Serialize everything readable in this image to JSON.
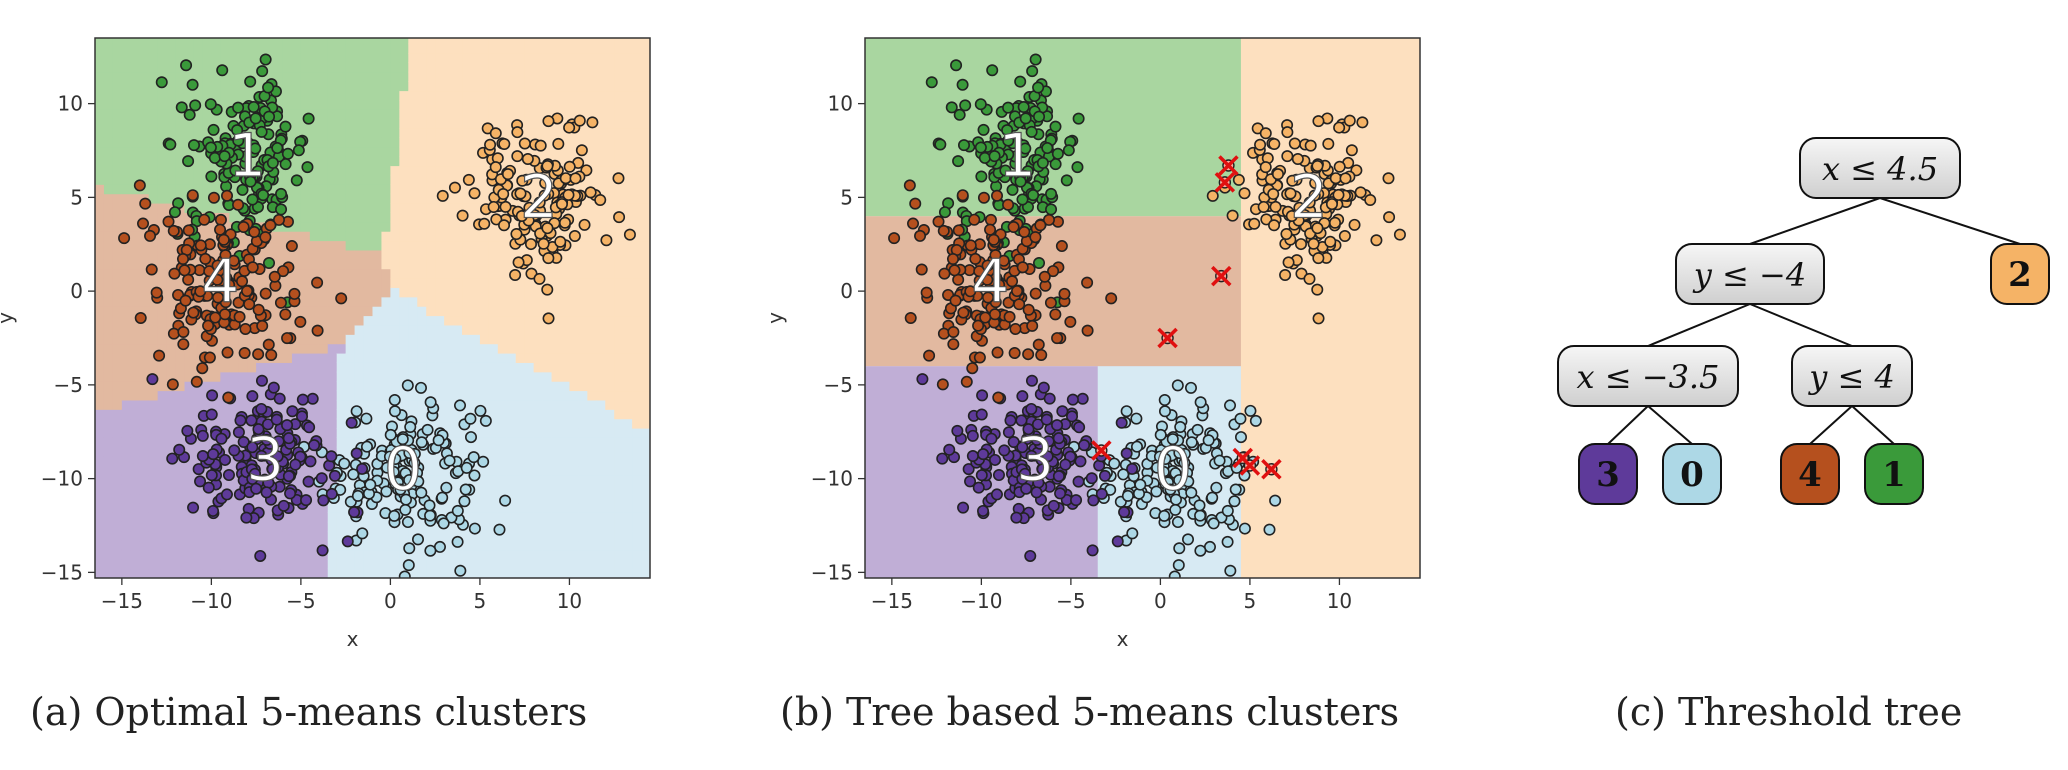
{
  "captions": {
    "a": "(a) Optimal 5-means clusters",
    "b": "(b) Tree based 5-means clusters",
    "c": "(c) Threshold tree"
  },
  "colors": {
    "c0": "#add8e6",
    "c1": "#3a9a3a",
    "c2": "#f5b366",
    "c3": "#5e3a9a",
    "c4": "#b5501e",
    "bg0": "#d7eaf3",
    "bg1": "#a9d6a0",
    "bg2": "#fde0bf",
    "bg3": "#c0aed6",
    "bg4": "#e2b9a0",
    "mistake": "#e01010"
  },
  "chart_data": [
    {
      "type": "scatter",
      "title": "",
      "xlabel": "x",
      "ylabel": "y",
      "xlim": [
        -16.5,
        14.5
      ],
      "ylim": [
        -15.3,
        13.5
      ],
      "xticks": [
        -15,
        -10,
        -5,
        0,
        5,
        10
      ],
      "yticks": [
        10,
        5,
        0,
        -5,
        -10,
        -15
      ],
      "grid": false,
      "clusters": [
        {
          "label": "0",
          "center": [
            0.7,
            -9.5
          ],
          "spread": [
            2.2,
            2.0
          ],
          "n": 170,
          "color": "c0"
        },
        {
          "label": "1",
          "center": [
            -8.0,
            7.2
          ],
          "spread": [
            1.8,
            2.2
          ],
          "n": 160,
          "color": "c1"
        },
        {
          "label": "2",
          "center": [
            8.3,
            5.0
          ],
          "spread": [
            2.0,
            2.0
          ],
          "n": 160,
          "color": "c2"
        },
        {
          "label": "3",
          "center": [
            -7.0,
            -9.0
          ],
          "spread": [
            2.2,
            2.0
          ],
          "n": 170,
          "color": "c3"
        },
        {
          "label": "4",
          "center": [
            -9.5,
            0.5
          ],
          "spread": [
            2.0,
            2.2
          ],
          "n": 170,
          "color": "c4"
        }
      ],
      "regions": "voronoi"
    },
    {
      "type": "scatter",
      "title": "",
      "xlabel": "x",
      "ylabel": "y",
      "xlim": [
        -16.5,
        14.5
      ],
      "ylim": [
        -15.3,
        13.5
      ],
      "xticks": [
        -15,
        -10,
        -5,
        0,
        5,
        10
      ],
      "yticks": [
        10,
        5,
        0,
        -5,
        -10,
        -15
      ],
      "grid": false,
      "clusters": [
        {
          "label": "0",
          "center": [
            0.7,
            -9.5
          ],
          "spread": [
            2.2,
            2.0
          ],
          "n": 170,
          "color": "c0"
        },
        {
          "label": "1",
          "center": [
            -8.0,
            7.2
          ],
          "spread": [
            1.8,
            2.2
          ],
          "n": 160,
          "color": "c1"
        },
        {
          "label": "2",
          "center": [
            8.3,
            5.0
          ],
          "spread": [
            2.0,
            2.0
          ],
          "n": 160,
          "color": "c2"
        },
        {
          "label": "3",
          "center": [
            -7.0,
            -9.0
          ],
          "spread": [
            2.2,
            2.0
          ],
          "n": 170,
          "color": "c3"
        },
        {
          "label": "4",
          "center": [
            -9.5,
            0.5
          ],
          "spread": [
            2.0,
            2.2
          ],
          "n": 170,
          "color": "c4"
        }
      ],
      "regions": "tree",
      "mistakes": [
        [
          3.8,
          6.7
        ],
        [
          3.6,
          5.8
        ],
        [
          3.4,
          0.8
        ],
        [
          0.4,
          -2.5
        ],
        [
          -3.3,
          -8.5
        ],
        [
          4.6,
          -8.9
        ],
        [
          5.0,
          -9.3
        ],
        [
          6.2,
          -9.5
        ]
      ]
    }
  ],
  "tree": {
    "nodes": [
      {
        "id": "root",
        "text": "x ≤ 4.5"
      },
      {
        "id": "left",
        "text": "y ≤ −4"
      },
      {
        "id": "ll",
        "text": "x ≤ −3.5"
      },
      {
        "id": "lr",
        "text": "y ≤ 4"
      }
    ],
    "leaves": [
      {
        "id": "leaf2",
        "text": "2",
        "color": "c2"
      },
      {
        "id": "leaf3",
        "text": "3",
        "color": "c3"
      },
      {
        "id": "leaf0",
        "text": "0",
        "color": "c0"
      },
      {
        "id": "leaf4",
        "text": "4",
        "color": "c4"
      },
      {
        "id": "leaf1",
        "text": "1",
        "color": "c1"
      }
    ]
  }
}
